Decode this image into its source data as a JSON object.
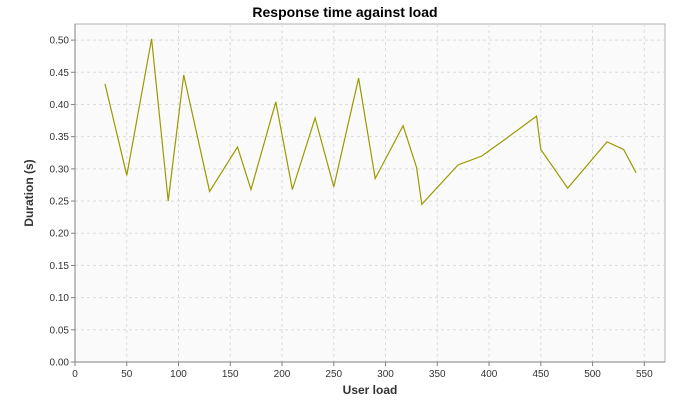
{
  "chart_data": {
    "type": "line",
    "title": "Response time against load",
    "xlabel": "User load",
    "ylabel": "Duration (s)",
    "xlim": [
      0,
      570
    ],
    "ylim": [
      0,
      0.525
    ],
    "xticks": [
      0,
      50,
      100,
      150,
      200,
      250,
      300,
      350,
      400,
      450,
      500,
      550
    ],
    "yticks": [
      0.0,
      0.05,
      0.1,
      0.15,
      0.2,
      0.25,
      0.3,
      0.35,
      0.4,
      0.45,
      0.5
    ],
    "ytick_labels": [
      "0.00",
      "0.05",
      "0.10",
      "0.15",
      "0.20",
      "0.25",
      "0.30",
      "0.35",
      "0.40",
      "0.45",
      "0.50"
    ],
    "grid": true,
    "series": [
      {
        "color": "#9a9a00",
        "x": [
          29,
          50,
          74,
          90,
          105,
          130,
          157,
          170,
          194,
          210,
          232,
          250,
          274,
          290,
          317,
          330,
          335,
          370,
          393,
          414,
          446,
          450,
          476,
          514,
          530,
          542
        ],
        "y": [
          0.432,
          0.29,
          0.502,
          0.25,
          0.446,
          0.265,
          0.334,
          0.268,
          0.404,
          0.268,
          0.379,
          0.272,
          0.441,
          0.285,
          0.367,
          0.302,
          0.245,
          0.306,
          0.32,
          0.344,
          0.382,
          0.33,
          0.27,
          0.342,
          0.33,
          0.294
        ]
      }
    ]
  }
}
